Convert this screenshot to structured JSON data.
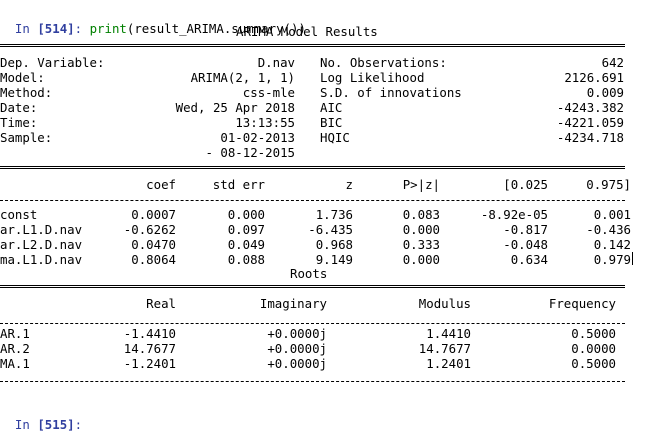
{
  "cells": [
    {
      "prompt_label": "In ",
      "prompt_number": "[514]",
      "prompt_colon": ":",
      "code_fn": "print",
      "code_rest": "(result_ARIMA.summary())"
    },
    {
      "prompt_label": "In ",
      "prompt_number": "[515]",
      "prompt_colon": ":"
    }
  ],
  "summary": {
    "title": "ARIMA Model Results",
    "info": [
      {
        "left_label": "Dep. Variable:",
        "left_value": "D.nav",
        "right_label": "No. Observations:",
        "right_value": "642"
      },
      {
        "left_label": "Model:",
        "left_value": "ARIMA(2, 1, 1)",
        "right_label": "Log Likelihood",
        "right_value": "2126.691"
      },
      {
        "left_label": "Method:",
        "left_value": "css-mle",
        "right_label": "S.D. of innovations",
        "right_value": "0.009"
      },
      {
        "left_label": "Date:",
        "left_value": "Wed, 25 Apr 2018",
        "right_label": "AIC",
        "right_value": "-4243.382"
      },
      {
        "left_label": "Time:",
        "left_value": "13:13:55",
        "right_label": "BIC",
        "right_value": "-4221.059"
      },
      {
        "left_label": "Sample:",
        "left_value": "01-02-2013",
        "right_label": "HQIC",
        "right_value": "-4234.718"
      },
      {
        "left_label": "",
        "left_value": "- 08-12-2015",
        "right_label": "",
        "right_value": ""
      }
    ],
    "coef_headers": [
      "coef",
      "std err",
      "z",
      "P>|z|",
      "[0.025",
      "0.975]"
    ],
    "coef_rows": [
      {
        "name": "const",
        "values": [
          "0.0007",
          "0.000",
          "1.736",
          "0.083",
          "-8.92e-05",
          "0.001"
        ]
      },
      {
        "name": "ar.L1.D.nav",
        "values": [
          "-0.6262",
          "0.097",
          "-6.435",
          "0.000",
          "-0.817",
          "-0.436"
        ]
      },
      {
        "name": "ar.L2.D.nav",
        "values": [
          "0.0470",
          "0.049",
          "0.968",
          "0.333",
          "-0.048",
          "0.142"
        ]
      },
      {
        "name": "ma.L1.D.nav",
        "values": [
          "0.8064",
          "0.088",
          "9.149",
          "0.000",
          "0.634",
          "0.979"
        ]
      }
    ],
    "roots_title": "Roots",
    "roots_headers": [
      "Real",
      "Imaginary",
      "Modulus",
      "Frequency"
    ],
    "roots_rows": [
      {
        "name": "AR.1",
        "values": [
          "-1.4410",
          "+0.0000j",
          "1.4410",
          "0.5000"
        ]
      },
      {
        "name": "AR.2",
        "values": [
          "14.7677",
          "+0.0000j",
          "14.7677",
          "0.0000"
        ]
      },
      {
        "name": "MA.1",
        "values": [
          "-1.2401",
          "+0.0000j",
          "1.2401",
          "0.5000"
        ]
      }
    ]
  }
}
